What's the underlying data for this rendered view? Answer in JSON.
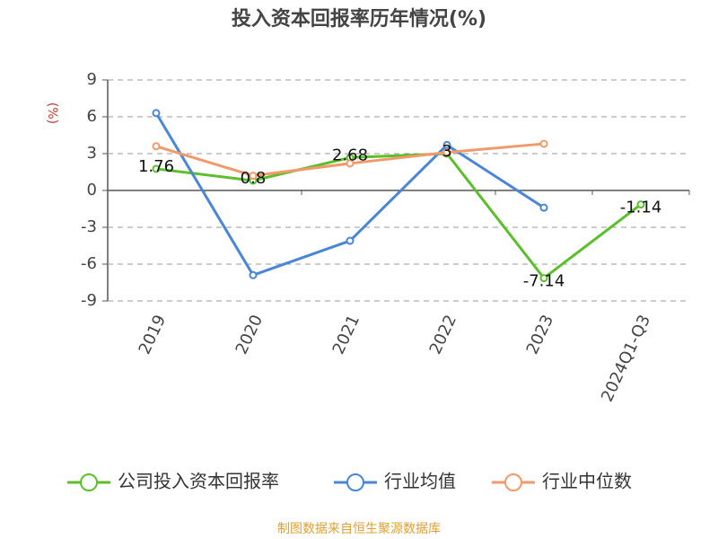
{
  "chart_data": {
    "type": "line",
    "title": "投入资本回报率历年情况(%)",
    "y_label": "(%)",
    "categories": [
      "2019",
      "2020",
      "2021",
      "2022",
      "2023",
      "2024Q1-Q3"
    ],
    "series": [
      {
        "name": "公司投入资本回报率",
        "color": "#5bbf2b",
        "values": [
          1.76,
          0.8,
          2.68,
          3.0,
          -7.14,
          -1.14
        ],
        "value_labels": [
          "1.76",
          "0.8",
          "2.68",
          "3",
          "-7.14",
          "-1.14"
        ]
      },
      {
        "name": "行业均值",
        "color": "#4a86d8",
        "values": [
          6.3,
          -6.9,
          -4.1,
          3.7,
          -1.4,
          null
        ]
      },
      {
        "name": "行业中位数",
        "color": "#f2996a",
        "values": [
          3.6,
          1.2,
          2.2,
          3.1,
          3.8,
          null
        ]
      }
    ],
    "ylim": [
      -9,
      9
    ],
    "yticks": [
      -9,
      -6,
      -3,
      0,
      3,
      6,
      9
    ],
    "grid": true,
    "source": "制图数据来自恒生聚源数据库"
  }
}
